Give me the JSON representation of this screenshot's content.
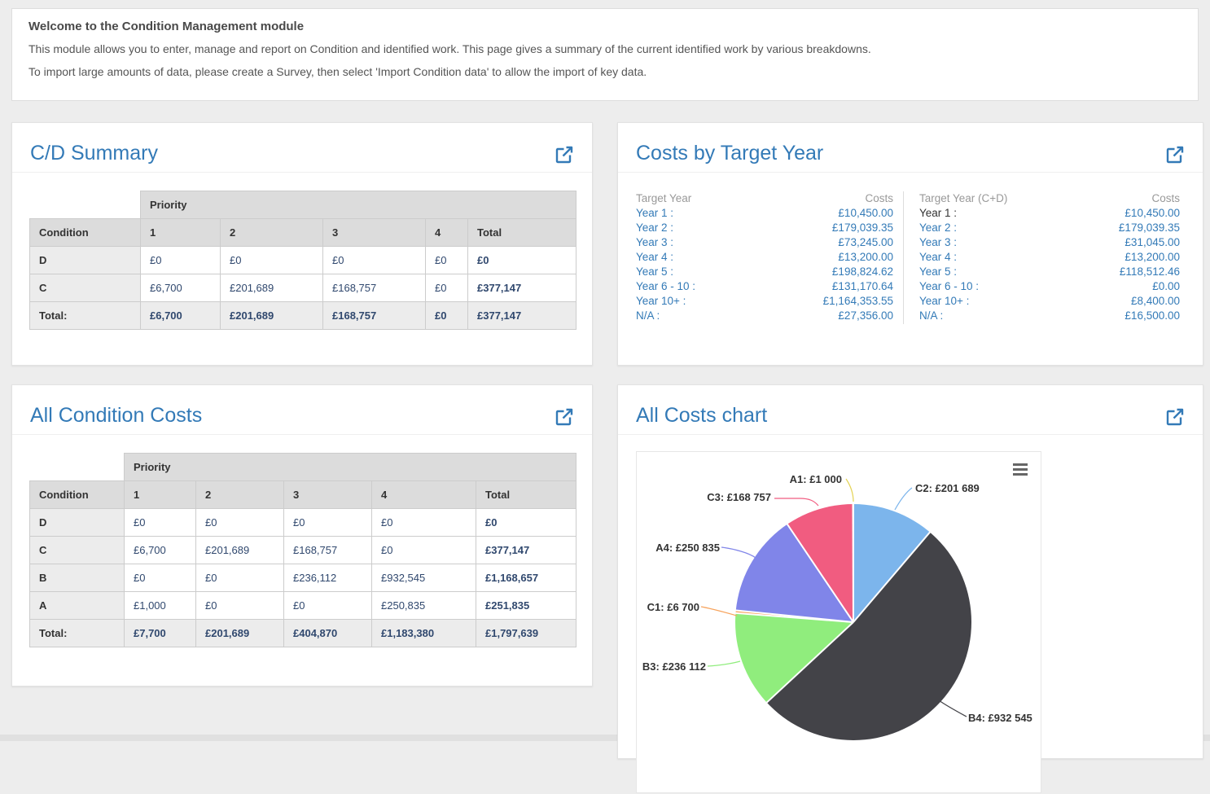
{
  "banner": {
    "title": "Welcome to the Condition Management module",
    "line1": "This module allows you to enter, manage and report on Condition and identified work. This page gives a summary of the current identified work by various breakdowns.",
    "line2": "To import large amounts of data, please create a Survey, then select 'Import Condition data' to allow the import of key data."
  },
  "cd_summary": {
    "title": "C/D Summary",
    "priority_header": "Priority",
    "columns": [
      "Condition",
      "1",
      "2",
      "3",
      "4",
      "Total"
    ],
    "rows": [
      {
        "label": "D",
        "values": [
          "£0",
          "£0",
          "£0",
          "£0"
        ],
        "total": "£0"
      },
      {
        "label": "C",
        "values": [
          "£6,700",
          "£201,689",
          "£168,757",
          "£0"
        ],
        "total": "£377,147"
      }
    ],
    "total_row": {
      "label": "Total:",
      "values": [
        "£6,700",
        "£201,689",
        "£168,757",
        "£0"
      ],
      "total": "£377,147"
    }
  },
  "costs_by_target_year": {
    "title": "Costs by Target Year",
    "left": {
      "header_label": "Target Year",
      "header_value": "Costs",
      "rows": [
        {
          "label": "Year 1 :",
          "value": "£10,450.00"
        },
        {
          "label": "Year 2 :",
          "value": "£179,039.35"
        },
        {
          "label": "Year 3 :",
          "value": "£73,245.00"
        },
        {
          "label": "Year 4 :",
          "value": "£13,200.00"
        },
        {
          "label": "Year 5 :",
          "value": "£198,824.62"
        },
        {
          "label": "Year 6 - 10 :",
          "value": "£131,170.64"
        },
        {
          "label": "Year 10+ :",
          "value": "£1,164,353.55"
        },
        {
          "label": "N/A :",
          "value": "£27,356.00"
        }
      ]
    },
    "right": {
      "header_label": "Target Year (C+D)",
      "header_value": "Costs",
      "rows": [
        {
          "label": "Year 1 :",
          "value": "£10,450.00"
        },
        {
          "label": "Year 2 :",
          "value": "£179,039.35"
        },
        {
          "label": "Year 3 :",
          "value": "£31,045.00"
        },
        {
          "label": "Year 4 :",
          "value": "£13,200.00"
        },
        {
          "label": "Year 5 :",
          "value": "£118,512.46"
        },
        {
          "label": "Year 6 - 10 :",
          "value": "£0.00"
        },
        {
          "label": "Year 10+ :",
          "value": "£8,400.00"
        },
        {
          "label": "N/A :",
          "value": "£16,500.00"
        }
      ]
    }
  },
  "all_condition_costs": {
    "title": "All Condition Costs",
    "priority_header": "Priority",
    "columns": [
      "Condition",
      "1",
      "2",
      "3",
      "4",
      "Total"
    ],
    "rows": [
      {
        "label": "D",
        "values": [
          "£0",
          "£0",
          "£0",
          "£0"
        ],
        "total": "£0"
      },
      {
        "label": "C",
        "values": [
          "£6,700",
          "£201,689",
          "£168,757",
          "£0"
        ],
        "total": "£377,147"
      },
      {
        "label": "B",
        "values": [
          "£0",
          "£0",
          "£236,112",
          "£932,545"
        ],
        "total": "£1,168,657"
      },
      {
        "label": "A",
        "values": [
          "£1,000",
          "£0",
          "£0",
          "£250,835"
        ],
        "total": "£251,835"
      }
    ],
    "total_row": {
      "label": "Total:",
      "values": [
        "£7,700",
        "£201,689",
        "£404,870",
        "£1,183,380"
      ],
      "total": "£1,797,639"
    }
  },
  "all_costs_chart": {
    "title": "All Costs chart"
  },
  "chart_data": {
    "type": "pie",
    "title": "",
    "legend": "none",
    "start_angle_deg": 0,
    "direction": "clockwise",
    "label_color": "#333333",
    "slices": [
      {
        "name": "C2",
        "value": 201689,
        "label": "C2: £201 689",
        "color": "#7cb5ec"
      },
      {
        "name": "B4",
        "value": 932545,
        "label": "B4: £932 545",
        "color": "#434348"
      },
      {
        "name": "B3",
        "value": 236112,
        "label": "B3: £236 112",
        "color": "#90ed7d"
      },
      {
        "name": "C1",
        "value": 6700,
        "label": "C1: £6 700",
        "color": "#f7a35c"
      },
      {
        "name": "A4",
        "value": 250835,
        "label": "A4: £250 835",
        "color": "#8085e9"
      },
      {
        "name": "C3",
        "value": 168757,
        "label": "C3: £168 757",
        "color": "#f15c80"
      },
      {
        "name": "A1",
        "value": 1000,
        "label": "A1: £1 000",
        "color": "#e4d354"
      }
    ]
  },
  "icons": {
    "expand": "external-link-icon",
    "chart_menu": "hamburger-menu-icon"
  },
  "colors": {
    "accent": "#337ab7",
    "money_text": "#30486e",
    "table_header_bg": "#dcdcdc",
    "table_label_bg": "#ececec",
    "page_bg": "#ededed"
  }
}
